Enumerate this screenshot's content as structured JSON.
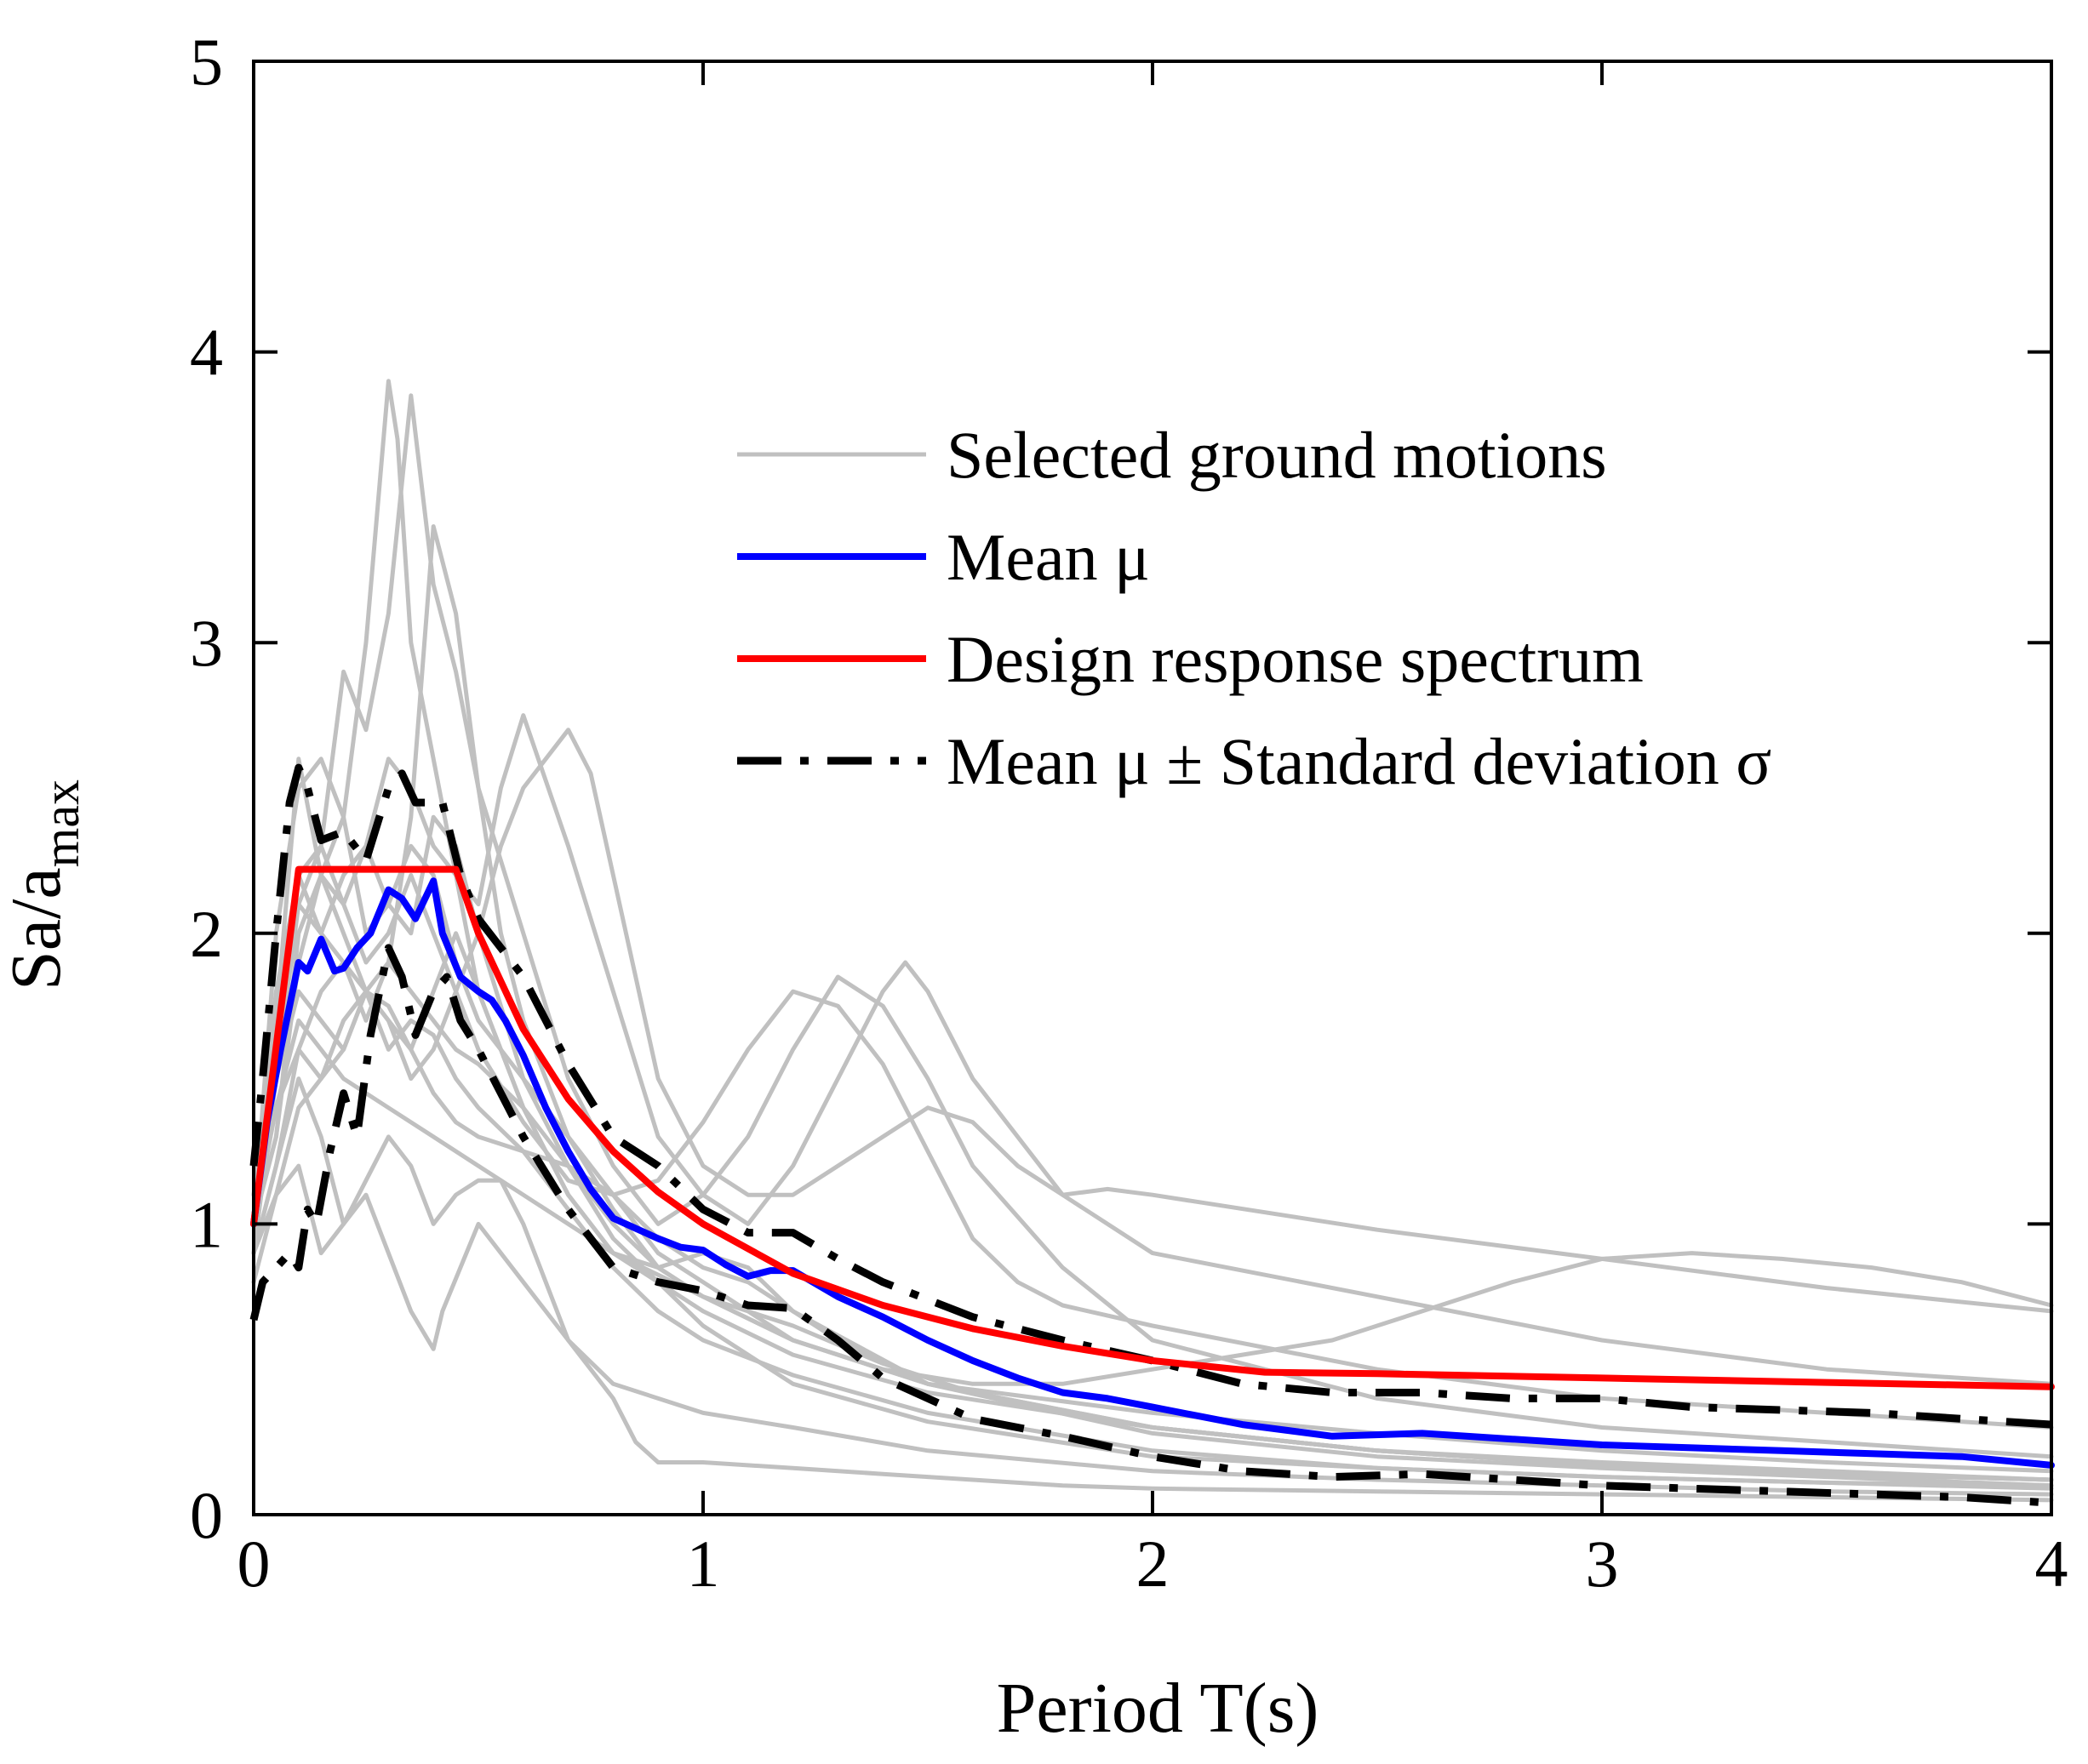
{
  "chart_data": {
    "type": "line",
    "title": "",
    "xlabel": "Period T(s)",
    "ylabel": {
      "base": "Sa/a",
      "subscript": "max"
    },
    "xlim": [
      0,
      4
    ],
    "ylim": [
      0,
      5
    ],
    "xticks": [
      "0",
      "1",
      "2",
      "3",
      "4"
    ],
    "yticks": [
      "0",
      "1",
      "2",
      "3",
      "4",
      "5"
    ],
    "grid": false,
    "legend_position": "top-right",
    "colors": {
      "ground_motion": "#c0c0c0",
      "mean": "#0000ff",
      "design": "#ff0000",
      "std": "#000000"
    },
    "legend": [
      {
        "label": "Selected ground motions",
        "series": "ground",
        "color": "#c0c0c0",
        "style": "solid"
      },
      {
        "label": "Mean μ",
        "series": "mean",
        "color": "#0000ff",
        "style": "solid"
      },
      {
        "label": "Design response spectrum",
        "series": "design",
        "color": "#ff0000",
        "style": "solid"
      },
      {
        "label": "Mean μ ± Standard deviation σ",
        "series": "std",
        "color": "#000000",
        "style": "dash-dot"
      }
    ],
    "series": [
      {
        "name": "Design response spectrum",
        "group": "design",
        "x": [
          0,
          0.1,
          0.45,
          0.5,
          0.6,
          0.7,
          0.8,
          0.9,
          1.0,
          1.2,
          1.4,
          1.6,
          1.8,
          2.0,
          2.25,
          2.5,
          3.0,
          3.5,
          4.0
        ],
        "y": [
          1.0,
          2.22,
          2.22,
          2.0,
          1.67,
          1.43,
          1.25,
          1.11,
          1.0,
          0.83,
          0.72,
          0.64,
          0.58,
          0.53,
          0.49,
          0.485,
          0.47,
          0.455,
          0.44
        ]
      },
      {
        "name": "Mean μ",
        "group": "mean",
        "x": [
          0,
          0.03,
          0.06,
          0.1,
          0.12,
          0.15,
          0.18,
          0.2,
          0.23,
          0.26,
          0.3,
          0.33,
          0.36,
          0.4,
          0.42,
          0.46,
          0.5,
          0.53,
          0.56,
          0.6,
          0.65,
          0.7,
          0.75,
          0.8,
          0.9,
          0.95,
          1.0,
          1.05,
          1.1,
          1.15,
          1.2,
          1.3,
          1.4,
          1.5,
          1.6,
          1.7,
          1.8,
          1.9,
          2.0,
          2.2,
          2.4,
          2.6,
          2.8,
          3.0,
          3.2,
          3.4,
          3.6,
          3.8,
          4.0
        ],
        "y": [
          1.0,
          1.35,
          1.6,
          1.9,
          1.87,
          1.98,
          1.87,
          1.88,
          1.95,
          2.0,
          2.15,
          2.12,
          2.05,
          2.18,
          2.0,
          1.85,
          1.8,
          1.77,
          1.7,
          1.58,
          1.4,
          1.25,
          1.12,
          1.02,
          0.95,
          0.92,
          0.91,
          0.86,
          0.82,
          0.84,
          0.84,
          0.75,
          0.68,
          0.6,
          0.53,
          0.47,
          0.42,
          0.4,
          0.37,
          0.31,
          0.27,
          0.28,
          0.26,
          0.24,
          0.23,
          0.22,
          0.21,
          0.2,
          0.17
        ]
      },
      {
        "name": "Mean μ + σ",
        "group": "std",
        "x": [
          0,
          0.02,
          0.05,
          0.08,
          0.1,
          0.12,
          0.15,
          0.2,
          0.25,
          0.28,
          0.3,
          0.33,
          0.36,
          0.42,
          0.46,
          0.5,
          0.6,
          0.7,
          0.8,
          0.9,
          1.0,
          1.1,
          1.2,
          1.3,
          1.4,
          1.6,
          1.8,
          2.0,
          2.2,
          2.4,
          2.6,
          2.8,
          3.0,
          3.2,
          3.4,
          3.6,
          3.8,
          4.0
        ],
        "y": [
          1.2,
          1.5,
          2.0,
          2.45,
          2.57,
          2.5,
          2.32,
          2.35,
          2.25,
          2.4,
          2.5,
          2.55,
          2.45,
          2.45,
          2.2,
          2.05,
          1.85,
          1.55,
          1.3,
          1.2,
          1.05,
          0.97,
          0.97,
          0.88,
          0.8,
          0.68,
          0.6,
          0.53,
          0.45,
          0.42,
          0.42,
          0.4,
          0.4,
          0.37,
          0.36,
          0.35,
          0.33,
          0.31
        ]
      },
      {
        "name": "Mean μ - σ",
        "group": "std",
        "x": [
          0,
          0.02,
          0.05,
          0.08,
          0.1,
          0.12,
          0.14,
          0.17,
          0.2,
          0.23,
          0.26,
          0.3,
          0.33,
          0.36,
          0.4,
          0.43,
          0.46,
          0.5,
          0.55,
          0.6,
          0.7,
          0.8,
          0.9,
          1.0,
          1.1,
          1.2,
          1.3,
          1.4,
          1.6,
          1.8,
          2.0,
          2.2,
          2.4,
          2.6,
          2.8,
          3.0,
          3.2,
          3.4,
          3.6,
          3.8,
          4.0
        ],
        "y": [
          0.67,
          0.8,
          0.85,
          0.9,
          0.85,
          1.05,
          1.0,
          1.25,
          1.45,
          1.3,
          1.65,
          1.95,
          1.85,
          1.65,
          1.8,
          1.85,
          1.7,
          1.6,
          1.45,
          1.3,
          1.05,
          0.85,
          0.8,
          0.77,
          0.72,
          0.71,
          0.6,
          0.47,
          0.33,
          0.27,
          0.2,
          0.15,
          0.13,
          0.14,
          0.12,
          0.1,
          0.09,
          0.08,
          0.07,
          0.06,
          0.04
        ]
      },
      {
        "name": "Ground motion 1",
        "group": "ground",
        "x": [
          0,
          0.05,
          0.1,
          0.15,
          0.2,
          0.25,
          0.3,
          0.32,
          0.35,
          0.4,
          0.45,
          0.5,
          0.6,
          0.7,
          0.8,
          0.9,
          1.0,
          1.2,
          1.5,
          2.0,
          2.5,
          3.0,
          3.5,
          4.0
        ],
        "y": [
          1.0,
          2.0,
          2.5,
          2.6,
          2.4,
          3.0,
          3.9,
          3.7,
          3.0,
          2.6,
          2.2,
          1.8,
          1.4,
          1.1,
          0.9,
          0.8,
          0.7,
          0.55,
          0.42,
          0.3,
          0.22,
          0.18,
          0.15,
          0.12
        ]
      },
      {
        "name": "Ground motion 2",
        "group": "ground",
        "x": [
          0,
          0.05,
          0.1,
          0.15,
          0.2,
          0.25,
          0.3,
          0.35,
          0.4,
          0.45,
          0.5,
          0.55,
          0.6,
          0.7,
          0.8,
          0.9,
          1.0,
          1.2,
          1.5,
          2.0,
          2.5,
          3.0,
          3.5,
          4.0
        ],
        "y": [
          0.9,
          1.5,
          2.2,
          2.3,
          2.9,
          2.7,
          3.1,
          3.85,
          3.2,
          2.9,
          2.5,
          2.0,
          1.7,
          1.3,
          1.05,
          0.85,
          0.75,
          0.6,
          0.45,
          0.35,
          0.28,
          0.22,
          0.18,
          0.15
        ]
      },
      {
        "name": "Ground motion 3",
        "group": "ground",
        "x": [
          0,
          0.05,
          0.1,
          0.15,
          0.2,
          0.25,
          0.3,
          0.35,
          0.4,
          0.45,
          0.5,
          0.6,
          0.7,
          0.8,
          0.9,
          1.0,
          1.1,
          1.2,
          1.3,
          1.4,
          1.5,
          1.6,
          1.8,
          2.0,
          2.5,
          3.0,
          3.5,
          4.0
        ],
        "y": [
          1.1,
          1.8,
          2.2,
          2.0,
          1.9,
          1.8,
          1.9,
          2.4,
          3.4,
          3.1,
          2.5,
          2.0,
          1.5,
          1.2,
          1.0,
          1.1,
          1.3,
          1.6,
          1.85,
          1.75,
          1.5,
          1.2,
          0.85,
          0.6,
          0.4,
          0.3,
          0.25,
          0.2
        ]
      },
      {
        "name": "Ground motion 4",
        "group": "ground",
        "x": [
          0,
          0.05,
          0.1,
          0.15,
          0.2,
          0.25,
          0.3,
          0.35,
          0.4,
          0.45,
          0.5,
          0.55,
          0.6,
          0.7,
          0.8,
          0.9,
          1.0,
          1.1,
          1.2,
          1.3,
          1.4,
          1.45,
          1.5,
          1.6,
          1.8,
          2.0,
          2.5,
          3.0,
          3.5,
          4.0
        ],
        "y": [
          1.0,
          1.6,
          2.1,
          2.3,
          2.1,
          2.3,
          2.6,
          2.5,
          2.3,
          2.2,
          2.1,
          2.5,
          2.75,
          2.3,
          1.8,
          1.3,
          1.1,
          1.0,
          1.2,
          1.5,
          1.8,
          1.9,
          1.8,
          1.5,
          1.1,
          0.9,
          0.75,
          0.6,
          0.5,
          0.45
        ]
      },
      {
        "name": "Ground motion 5",
        "group": "ground",
        "x": [
          0,
          0.05,
          0.1,
          0.15,
          0.2,
          0.25,
          0.3,
          0.35,
          0.4,
          0.45,
          0.5,
          0.55,
          0.6,
          0.7,
          0.75,
          0.8,
          0.9,
          1.0,
          1.1,
          1.2,
          1.3,
          1.4,
          1.5,
          1.6,
          1.7,
          1.8,
          1.9,
          2.0,
          2.5,
          3.0,
          3.5,
          4.0
        ],
        "y": [
          1.1,
          1.5,
          1.8,
          1.7,
          1.6,
          1.8,
          1.7,
          1.5,
          1.6,
          1.8,
          2.0,
          2.3,
          2.5,
          2.7,
          2.55,
          2.2,
          1.5,
          1.2,
          1.1,
          1.1,
          1.2,
          1.3,
          1.4,
          1.35,
          1.2,
          1.1,
          1.12,
          1.1,
          0.98,
          0.88,
          0.78,
          0.7
        ]
      },
      {
        "name": "Ground motion 6",
        "group": "ground",
        "x": [
          0,
          0.05,
          0.1,
          0.15,
          0.2,
          0.3,
          0.4,
          0.5,
          0.6,
          0.8,
          1.0,
          1.2,
          1.4,
          1.6,
          1.8,
          2.0,
          2.2,
          2.4,
          2.6,
          2.8,
          3.0,
          3.2,
          3.4,
          3.6,
          3.8,
          4.0
        ],
        "y": [
          1.0,
          1.4,
          1.7,
          1.6,
          1.5,
          1.4,
          1.3,
          1.2,
          1.1,
          0.9,
          0.75,
          0.6,
          0.5,
          0.45,
          0.45,
          0.5,
          0.55,
          0.6,
          0.7,
          0.8,
          0.88,
          0.9,
          0.88,
          0.85,
          0.8,
          0.72
        ]
      },
      {
        "name": "Ground motion 7",
        "group": "ground",
        "x": [
          0,
          0.05,
          0.1,
          0.15,
          0.2,
          0.25,
          0.3,
          0.35,
          0.4,
          0.42,
          0.5,
          0.6,
          0.7,
          0.8,
          0.85,
          0.9,
          1.0,
          1.2,
          1.4,
          1.6,
          1.8,
          2.0,
          2.5,
          3.0,
          3.5,
          4.0
        ],
        "y": [
          0.9,
          1.2,
          1.5,
          1.3,
          1.0,
          1.1,
          0.9,
          0.7,
          0.57,
          0.7,
          1.0,
          0.8,
          0.6,
          0.4,
          0.25,
          0.18,
          0.18,
          0.16,
          0.14,
          0.12,
          0.1,
          0.09,
          0.08,
          0.07,
          0.06,
          0.05
        ]
      },
      {
        "name": "Ground motion 8",
        "group": "ground",
        "x": [
          0,
          0.05,
          0.1,
          0.15,
          0.2,
          0.25,
          0.3,
          0.35,
          0.4,
          0.45,
          0.5,
          0.55,
          0.6,
          0.65,
          0.7,
          0.8,
          1.0,
          1.2,
          1.5,
          2.0,
          2.5,
          3.0,
          3.5,
          4.0
        ],
        "y": [
          0.8,
          1.1,
          1.2,
          0.9,
          1.0,
          1.15,
          1.3,
          1.2,
          1.0,
          1.1,
          1.15,
          1.15,
          1.0,
          0.8,
          0.6,
          0.45,
          0.35,
          0.3,
          0.22,
          0.15,
          0.12,
          0.1,
          0.08,
          0.07
        ]
      },
      {
        "name": "Ground motion 9",
        "group": "ground",
        "x": [
          0,
          0.05,
          0.1,
          0.15,
          0.2,
          0.25,
          0.3,
          0.35,
          0.4,
          0.45,
          0.5,
          0.6,
          0.7,
          0.8,
          0.9,
          1.0,
          1.1,
          1.2,
          1.3,
          1.4,
          1.5,
          1.6,
          1.7,
          1.8,
          2.0,
          2.5,
          3.0,
          3.5,
          4.0
        ],
        "y": [
          1.0,
          1.3,
          2.0,
          2.2,
          2.1,
          1.9,
          2.0,
          2.2,
          2.0,
          1.8,
          1.6,
          1.35,
          1.15,
          1.1,
          1.15,
          1.35,
          1.6,
          1.8,
          1.75,
          1.55,
          1.25,
          0.95,
          0.8,
          0.72,
          0.65,
          0.5,
          0.4,
          0.35,
          0.3
        ]
      },
      {
        "name": "Ground motion 10",
        "group": "ground",
        "x": [
          0,
          0.05,
          0.1,
          0.15,
          0.2,
          0.25,
          0.3,
          0.35,
          0.4,
          0.45,
          0.5,
          0.6,
          0.7,
          0.8,
          0.9,
          1.0,
          1.2,
          1.5,
          2.0,
          2.5,
          3.0,
          3.5,
          4.0
        ],
        "y": [
          1.0,
          1.7,
          2.6,
          2.2,
          2.4,
          2.0,
          2.1,
          2.3,
          2.2,
          1.9,
          1.7,
          1.5,
          1.3,
          1.1,
          0.9,
          0.8,
          0.6,
          0.45,
          0.3,
          0.22,
          0.17,
          0.14,
          0.12
        ]
      },
      {
        "name": "Ground motion 11",
        "group": "ground",
        "x": [
          0,
          0.05,
          0.1,
          0.15,
          0.2,
          0.25,
          0.3,
          0.35,
          0.4,
          0.45,
          0.5,
          0.6,
          0.7,
          0.8,
          0.9,
          1.0,
          1.1,
          1.2,
          1.5,
          2.0,
          2.5,
          3.0,
          3.5,
          4.0
        ],
        "y": [
          1.1,
          1.4,
          1.6,
          1.5,
          1.7,
          1.8,
          1.7,
          1.6,
          1.8,
          2.0,
          1.8,
          1.4,
          1.1,
          0.9,
          0.85,
          0.9,
          0.85,
          0.7,
          0.45,
          0.28,
          0.2,
          0.16,
          0.13,
          0.1
        ]
      },
      {
        "name": "Ground motion 12",
        "group": "ground",
        "x": [
          0,
          0.05,
          0.1,
          0.15,
          0.2,
          0.25,
          0.3,
          0.35,
          0.4,
          0.45,
          0.5,
          0.55,
          0.6,
          0.7,
          0.8,
          1.0,
          1.2,
          1.5,
          2.0,
          2.5,
          3.0,
          3.5,
          4.0
        ],
        "y": [
          1.0,
          1.5,
          2.1,
          2.0,
          2.2,
          2.3,
          2.1,
          2.0,
          2.4,
          2.3,
          2.0,
          1.75,
          1.5,
          1.2,
          0.95,
          0.65,
          0.45,
          0.32,
          0.2,
          0.16,
          0.13,
          0.11,
          0.09
        ]
      },
      {
        "name": "Ground motion 13",
        "group": "ground",
        "x": [
          0,
          0.05,
          0.1,
          0.15,
          0.2,
          0.25,
          0.3,
          0.35,
          0.4,
          0.45,
          0.5,
          0.6,
          0.7,
          0.8,
          0.9,
          1.0,
          1.1,
          1.2,
          1.4,
          1.6,
          1.8,
          2.0,
          2.5,
          3.0,
          3.5,
          4.0
        ],
        "y": [
          0.9,
          1.2,
          1.6,
          1.8,
          1.9,
          1.7,
          1.9,
          1.8,
          1.7,
          1.6,
          1.55,
          1.4,
          1.2,
          1.0,
          0.85,
          0.75,
          0.7,
          0.65,
          0.52,
          0.42,
          0.35,
          0.3,
          0.22,
          0.17,
          0.14,
          0.12
        ]
      },
      {
        "name": "Ground motion 14",
        "group": "ground",
        "x": [
          0,
          0.05,
          0.1,
          0.15,
          0.2,
          0.25,
          0.3,
          0.35,
          0.4,
          0.45,
          0.5,
          0.6,
          0.7,
          0.8,
          0.9,
          1.0,
          1.2,
          1.5,
          2.0,
          2.5,
          3.0,
          3.5,
          4.0
        ],
        "y": [
          1.0,
          1.3,
          1.9,
          2.2,
          2.0,
          1.8,
          1.6,
          1.7,
          1.65,
          1.5,
          1.4,
          1.25,
          1.05,
          0.85,
          0.7,
          0.6,
          0.48,
          0.35,
          0.22,
          0.16,
          0.13,
          0.11,
          0.1
        ]
      },
      {
        "name": "Ground motion 15",
        "group": "ground",
        "x": [
          0,
          0.05,
          0.1,
          0.15,
          0.2,
          0.25,
          0.3,
          0.35,
          0.4,
          0.45,
          0.5,
          0.6,
          0.7,
          0.8,
          0.9,
          1.0,
          1.1,
          1.2,
          1.3,
          1.5,
          2.0,
          2.5,
          3.0,
          3.5,
          4.0
        ],
        "y": [
          0.9,
          1.1,
          1.4,
          1.5,
          1.6,
          1.8,
          1.75,
          1.6,
          1.45,
          1.35,
          1.3,
          1.25,
          1.2,
          1.1,
          0.95,
          0.85,
          0.8,
          0.7,
          0.6,
          0.45,
          0.3,
          0.22,
          0.17,
          0.14,
          0.12
        ]
      }
    ]
  }
}
